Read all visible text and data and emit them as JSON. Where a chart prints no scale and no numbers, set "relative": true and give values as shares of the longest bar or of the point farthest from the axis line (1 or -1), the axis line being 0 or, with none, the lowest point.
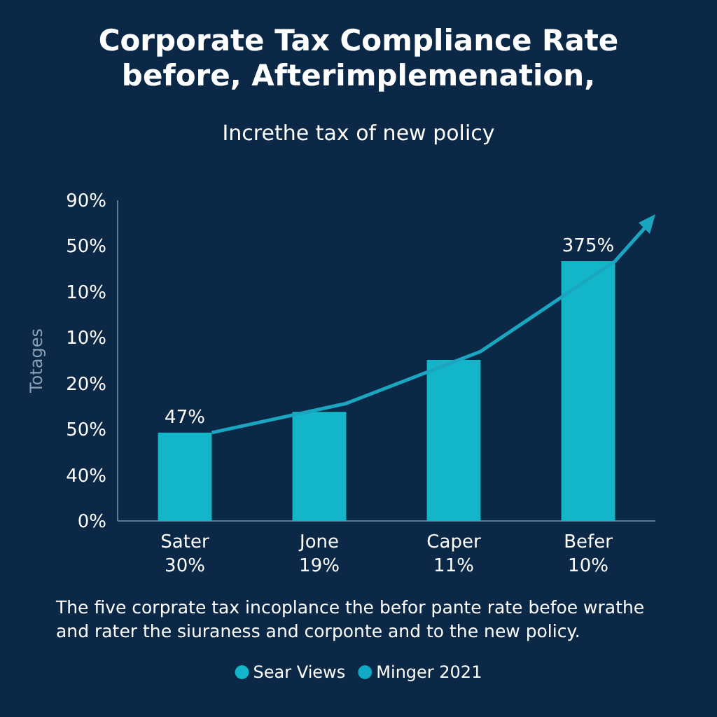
{
  "chart_data": {
    "type": "bar",
    "title": "Corporate Tax Compliance Rate before, Afterimplemenation,",
    "subtitle": "Increthe tax of new policy",
    "ylabel": "Totages",
    "categories": [
      "Sater\n30%",
      "Jone\n19%",
      "Caper\n11%",
      "Befer\n10%"
    ],
    "relative": true,
    "series": [
      {
        "name": "Sear Views",
        "color": "#13b6c8",
        "values": [
          0.34,
          0.42,
          0.62,
          1
        ]
      },
      {
        "name": "Minger 2021",
        "color": "#13a9c4",
        "values": [
          null,
          null,
          null,
          null
        ]
      }
    ],
    "legend": "bottom",
    "annotations": [
      {
        "text": "47%",
        "x": "Sater\n30%",
        "y": 0.34
      },
      {
        "text": "375%",
        "x": "Befer\n10%",
        "y": 1
      },
      "90%",
      "50%",
      "10%",
      "10%",
      "20%",
      "50%",
      "40%",
      "0%",
      "The five corprate tax incoplance the befor pante rate befoe wrathe and rater the siuraness and corponte and to the new policy."
    ]
  }
}
